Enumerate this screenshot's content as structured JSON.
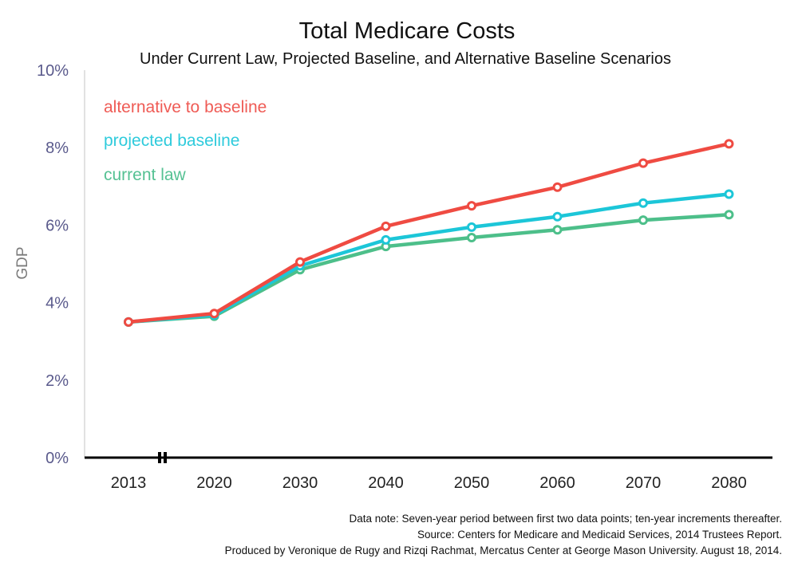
{
  "chart_data": {
    "type": "line",
    "title": "Total Medicare Costs",
    "subtitle": "Under Current Law, Projected Baseline, and Alternative Baseline Scenarios",
    "ylabel": "GDP",
    "xlabel": "",
    "categories": [
      "2013",
      "2020",
      "2030",
      "2040",
      "2050",
      "2060",
      "2070",
      "2080"
    ],
    "yticks": [
      "0%",
      "2%",
      "4%",
      "6%",
      "8%",
      "10%"
    ],
    "ylim": [
      0,
      10
    ],
    "grid": false,
    "legend_position": "top-left",
    "axis_break": true,
    "series": [
      {
        "name": "current law",
        "color": "#4dbf8a",
        "values": [
          3.5,
          3.65,
          4.85,
          5.45,
          5.68,
          5.88,
          6.13,
          6.27
        ]
      },
      {
        "name": "projected baseline",
        "color": "#1cc6d8",
        "values": [
          3.5,
          3.68,
          4.95,
          5.62,
          5.95,
          6.22,
          6.57,
          6.8
        ]
      },
      {
        "name": "alternative to baseline",
        "color": "#ef4b42",
        "values": [
          3.5,
          3.72,
          5.05,
          5.97,
          6.5,
          6.98,
          7.6,
          8.1
        ]
      }
    ],
    "notes": [
      "Data note: Seven-year period between first two data points; ten-year increments thereafter.",
      "Source: Centers for Medicare and Medicaid Services, 2014 Trustees Report.",
      "Produced by Veronique de Rugy and Rizqi Rachmat, Mercatus Center at George Mason University. August 18, 2014."
    ]
  }
}
